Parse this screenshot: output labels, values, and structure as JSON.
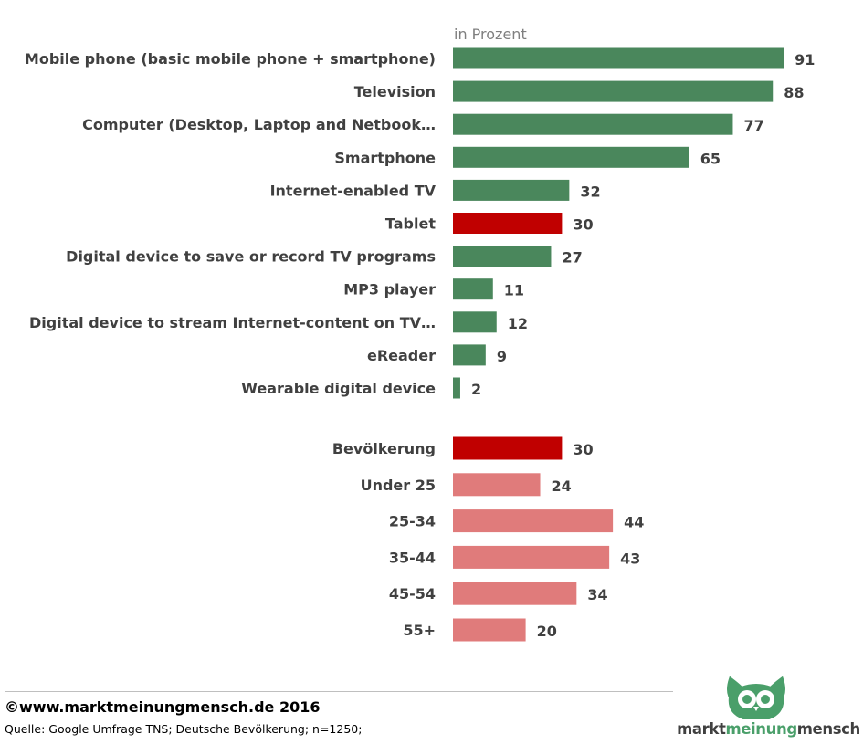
{
  "chart_data": {
    "type": "bar",
    "orientation": "horizontal",
    "unit_label": "in Prozent",
    "xlim": [
      0,
      100
    ],
    "groups": [
      {
        "name": "devices",
        "categories": [
          "Mobile phone (basic mobile phone + smartphone)",
          "Television",
          "Computer (Desktop, Laptop and Netbook…",
          "Smartphone",
          "Internet-enabled TV",
          "Tablet",
          "Digital device to save or record TV programs",
          "MP3 player",
          "Digital device to stream Internet-content on TV…",
          "eReader",
          "Wearable digital device"
        ],
        "values": [
          91,
          88,
          77,
          65,
          32,
          30,
          27,
          11,
          12,
          9,
          2
        ],
        "colors": [
          "#4a875c",
          "#4a875c",
          "#4a875c",
          "#4a875c",
          "#4a875c",
          "#c00000",
          "#4a875c",
          "#4a875c",
          "#4a875c",
          "#4a875c",
          "#4a875c"
        ]
      },
      {
        "name": "age",
        "categories": [
          "Bevölkerung",
          "Under 25",
          "25-34",
          "35-44",
          "45-54",
          "55+"
        ],
        "values": [
          30,
          24,
          44,
          43,
          34,
          20
        ],
        "colors": [
          "#c00000",
          "#e07b7b",
          "#e07b7b",
          "#e07b7b",
          "#e07b7b",
          "#e07b7b"
        ]
      }
    ]
  },
  "footer": {
    "copyright": "©www.marktmeinungmensch.de 2016",
    "source": "Quelle: Google Umfrage TNS; Deutsche Bevölkerung; n=1250;"
  },
  "logo": {
    "word1": "markt",
    "word2": "meinung",
    "word3": "mensch",
    "colors": {
      "green": "#4a9f6a",
      "dark": "#404040"
    },
    "icon": "owl-icon"
  }
}
